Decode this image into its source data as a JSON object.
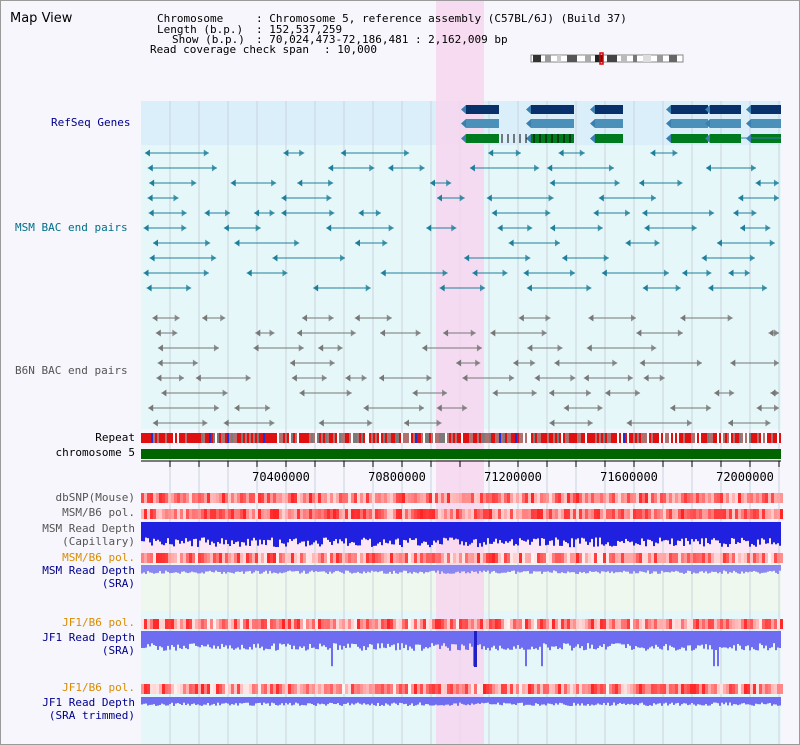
{
  "page": {
    "title": "Map View"
  },
  "header": {
    "chromosome_label": "Chromosome",
    "chromosome_value": ": Chromosome 5, reference assembly (C57BL/6J) (Build 37)",
    "length_label": "Length (b.p.)",
    "length_value": ": 152,537,259",
    "show_label": "Show (b.p.)",
    "show_value": ": 70,024,473-72,186,481 : 2,162,009 bp",
    "coverage_label": "Read coverage check span",
    "coverage_value": ": 10,000"
  },
  "tracks": {
    "refseq": "RefSeq Genes",
    "msm_bac": "MSM BAC end pairs",
    "b6n_bac": "B6N BAC end pairs",
    "repeat": "Repeat",
    "chromosome": "chromosome 5",
    "dbsnp": "dbSNP(Mouse)",
    "msm_pol": "MSM/B6 pol.",
    "msm_cap_1": "MSM Read Depth",
    "msm_cap_2": "(Capillary)",
    "msm_pol2": "MSM/B6 pol.",
    "msm_sra_1": "MSM Read Depth",
    "msm_sra_2": "(SRA)",
    "jf1_pol": "JF1/B6 pol.",
    "jf1_sra_1": "JF1 Read Depth",
    "jf1_sra_2": "(SRA)",
    "jf1_pol2": "JF1/B6 pol.",
    "jf1_trim_1": "JF1 Read Depth",
    "jf1_trim_2": "(SRA trimmed)"
  },
  "axis": {
    "labels": [
      "70400000",
      "70800000",
      "71200000",
      "71600000",
      "72000000"
    ]
  },
  "colors": {
    "refseq_label": "#00008b",
    "msm_label": "#006f8a",
    "b6n_label": "#555555",
    "gene_dark": "#08306b",
    "gene_mid": "#4a90b8",
    "gene_green": "#007a1f",
    "chromosome_bar": "#006400",
    "highlight": "#f7d6ee",
    "orange_label": "#d98c00"
  }
}
